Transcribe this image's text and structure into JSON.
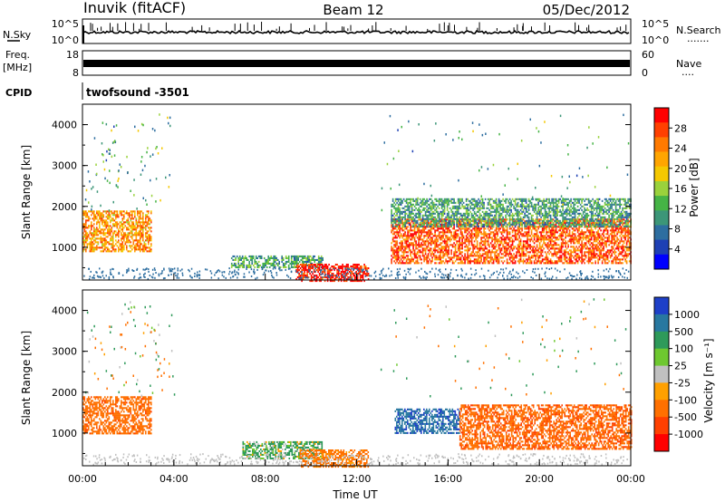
{
  "header": {
    "station": "Inuvik (fitACF)",
    "beam": "Beam 12",
    "date": "05/Dec/2012"
  },
  "param_panels": {
    "nsky": {
      "left_label": "N.Sky",
      "left_ticks": [
        "10^5",
        "10^0"
      ],
      "right_ticks": [
        "10^5",
        "10^0"
      ],
      "right_label": "N.Search",
      "right_line": "·······"
    },
    "freq": {
      "left_label": "Freq.",
      "left_unit": "[MHz]",
      "left_ticks": [
        "18",
        "8"
      ],
      "right_ticks": [
        "60",
        "0"
      ],
      "right_label": "Nave",
      "right_line": "····"
    },
    "cpid": {
      "label": "CPID",
      "program": "twofsound -3501"
    }
  },
  "colorbars": {
    "power": {
      "label": "Power [dB]",
      "ticks": [
        "28",
        "24",
        "20",
        "16",
        "12",
        "8",
        "4"
      ],
      "colors": [
        "#ff0000",
        "#ff4000",
        "#ff7a00",
        "#ffa500",
        "#f5c800",
        "#9ad23c",
        "#46b446",
        "#3c9678",
        "#2d6ea0",
        "#1e40b4",
        "#0000ff"
      ]
    },
    "velocity": {
      "label": "Velocity [m s⁻¹]",
      "ticks": [
        "1000",
        "500",
        "100",
        "25",
        "-25",
        "-100",
        "-500",
        "-1000"
      ],
      "colors": [
        "#1e40c8",
        "#2878a0",
        "#2e9a5a",
        "#6ec830",
        "#c0c0c0",
        "#ffa000",
        "#ff7000",
        "#ff4000",
        "#ff0000"
      ]
    }
  },
  "chart_data": [
    {
      "type": "heatmap",
      "title": "Power",
      "ylabel": "Slant Range [km]",
      "yticks": [
        "4000",
        "3000",
        "2000",
        "1000"
      ],
      "ylim": [
        200,
        4500
      ],
      "xlim": [
        "00:00",
        "24:00"
      ],
      "echo_regions": [
        {
          "t_start": "00:00",
          "t_end": "03:00",
          "range_start": 900,
          "range_end": 1900,
          "typical_power_db": 22
        },
        {
          "t_start": "06:30",
          "t_end": "10:30",
          "range_start": 500,
          "range_end": 800,
          "typical_power_db": 10
        },
        {
          "t_start": "09:20",
          "t_end": "12:30",
          "range_start": 200,
          "range_end": 600,
          "typical_power_db": 30
        },
        {
          "t_start": "13:30",
          "t_end": "24:00",
          "range_start": 600,
          "range_end": 1700,
          "typical_power_db": 26
        },
        {
          "t_start": "13:30",
          "t_end": "24:00",
          "range_start": 1500,
          "range_end": 2200,
          "typical_power_db": 10
        }
      ]
    },
    {
      "type": "heatmap",
      "title": "Velocity",
      "ylabel": "Slant Range [km]",
      "yticks": [
        "4000",
        "3000",
        "2000",
        "1000"
      ],
      "ylim": [
        200,
        4500
      ],
      "xlim": [
        "00:00",
        "24:00"
      ],
      "xticks": [
        "00:00",
        "04:00",
        "08:00",
        "12:00",
        "16:00",
        "20:00",
        "00:00"
      ],
      "xlabel": "Time UT",
      "echo_regions": [
        {
          "t_start": "00:00",
          "t_end": "03:00",
          "range_start": 1000,
          "range_end": 1900,
          "typical_velocity": -200
        },
        {
          "t_start": "07:00",
          "t_end": "10:30",
          "range_start": 400,
          "range_end": 800,
          "typical_velocity": 80
        },
        {
          "t_start": "09:30",
          "t_end": "12:30",
          "range_start": 200,
          "range_end": 600,
          "typical_velocity": -150
        },
        {
          "t_start": "13:40",
          "t_end": "16:30",
          "range_start": 1000,
          "range_end": 1600,
          "typical_velocity": 700
        },
        {
          "t_start": "16:30",
          "t_end": "24:00",
          "range_start": 600,
          "range_end": 1700,
          "typical_velocity": -250
        }
      ]
    }
  ]
}
